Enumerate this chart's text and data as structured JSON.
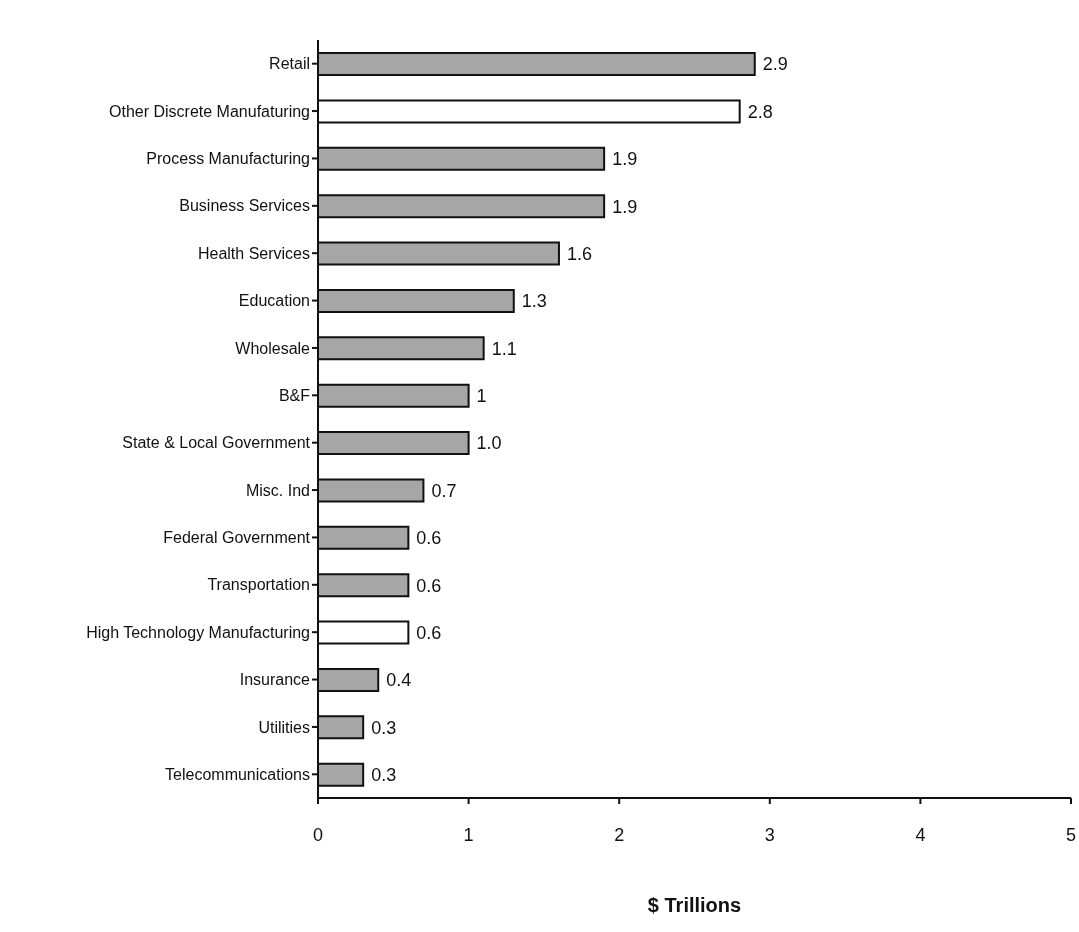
{
  "chart_data": {
    "type": "bar",
    "orientation": "horizontal",
    "xlabel": "$ Trillions",
    "categories": [
      "Retail",
      "Other Discrete Manufaturing",
      "Process Manufacturing",
      "Business Services",
      "Health Services",
      "Education",
      "Wholesale",
      "B&F",
      "State & Local Government",
      "Misc. Ind",
      "Federal Government",
      "Transportation",
      "High Technology Manufacturing",
      "Insurance",
      "Utilities",
      "Telecommunications"
    ],
    "values": [
      2.9,
      2.8,
      1.9,
      1.9,
      1.6,
      1.3,
      1.1,
      1.0,
      1.0,
      0.7,
      0.6,
      0.6,
      0.6,
      0.4,
      0.3,
      0.3
    ],
    "value_labels": [
      "2.9",
      "2.8",
      "1.9",
      "1.9",
      "1.6",
      "1.3",
      "1.1",
      "1",
      "1.0",
      "0.7",
      "0.6",
      "0.6",
      "0.6",
      "0.4",
      "0.3",
      "0.3"
    ],
    "colors": [
      "#a6a6a6",
      "#ffffff",
      "#a6a6a6",
      "#a6a6a6",
      "#a6a6a6",
      "#a6a6a6",
      "#a6a6a6",
      "#a6a6a6",
      "#a6a6a6",
      "#a6a6a6",
      "#a6a6a6",
      "#a6a6a6",
      "#ffffff",
      "#a6a6a6",
      "#a6a6a6",
      "#a6a6a6"
    ],
    "xlim": [
      0,
      5
    ],
    "xticks": [
      0,
      1,
      2,
      3,
      4,
      5
    ],
    "grid": false,
    "legend": false
  }
}
